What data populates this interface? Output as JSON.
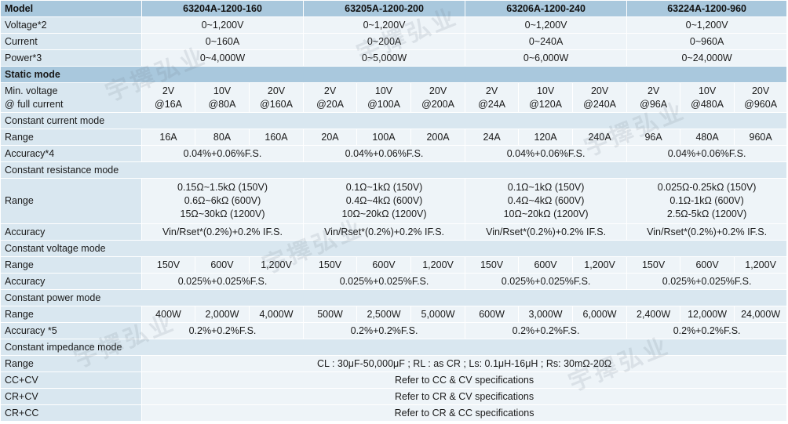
{
  "header": {
    "label": "Model",
    "models": [
      "63204A-1200-160",
      "63205A-1200-200",
      "63206A-1200-240",
      "63224A-1200-960"
    ]
  },
  "rows": {
    "voltage": {
      "label": "Voltage*2",
      "values": [
        "0~1,200V",
        "0~1,200V",
        "0~1,200V",
        "0~1,200V"
      ]
    },
    "current": {
      "label": "Current",
      "values": [
        "0~160A",
        "0~200A",
        "0~240A",
        "0~960A"
      ]
    },
    "power": {
      "label": "Power*3",
      "values": [
        "0~4,000W",
        "0~5,000W",
        "0~6,000W",
        "0~24,000W"
      ]
    }
  },
  "static_mode": {
    "title": "Static mode",
    "min_voltage": {
      "label_line1": "Min. voltage",
      "label_line2": "@ full current",
      "cells": [
        [
          "2V",
          "@16A"
        ],
        [
          "10V",
          "@80A"
        ],
        [
          "20V",
          "@160A"
        ],
        [
          "2V",
          "@20A"
        ],
        [
          "10V",
          "@100A"
        ],
        [
          "20V",
          "@200A"
        ],
        [
          "2V",
          "@24A"
        ],
        [
          "10V",
          "@120A"
        ],
        [
          "20V",
          "@240A"
        ],
        [
          "2V",
          "@96A"
        ],
        [
          "10V",
          "@480A"
        ],
        [
          "20V",
          "@960A"
        ]
      ]
    }
  },
  "cc_mode": {
    "title": "Constant current mode",
    "range_label": "Range",
    "range": [
      "16A",
      "80A",
      "160A",
      "20A",
      "100A",
      "200A",
      "24A",
      "120A",
      "240A",
      "96A",
      "480A",
      "960A"
    ],
    "accuracy_label": "Accuracy*4",
    "accuracy": [
      "0.04%+0.06%F.S.",
      "0.04%+0.06%F.S.",
      "0.04%+0.06%F.S.",
      "0.04%+0.06%F.S."
    ]
  },
  "cr_mode": {
    "title": "Constant resistance mode",
    "range_label": "Range",
    "range": [
      [
        "0.15Ω~1.5kΩ (150V)",
        "0.6Ω~6kΩ (600V)",
        "15Ω~30kΩ (1200V)"
      ],
      [
        "0.1Ω~1kΩ (150V)",
        "0.4Ω~4kΩ (600V)",
        "10Ω~20kΩ (1200V)"
      ],
      [
        "0.1Ω~1kΩ (150V)",
        "0.4Ω~4kΩ (600V)",
        "10Ω~20kΩ (1200V)"
      ],
      [
        "0.025Ω-0.25kΩ (150V)",
        "0.1Ω-1kΩ (600V)",
        "2.5Ω-5kΩ (1200V)"
      ]
    ],
    "accuracy_label": "Accuracy",
    "accuracy": [
      "Vin/Rset*(0.2%)+0.2% IF.S.",
      "Vin/Rset*(0.2%)+0.2% IF.S.",
      "Vin/Rset*(0.2%)+0.2% IF.S.",
      "Vin/Rset*(0.2%)+0.2% IF.S."
    ]
  },
  "cv_mode": {
    "title": "Constant voltage mode",
    "range_label": "Range",
    "range": [
      "150V",
      "600V",
      "1,200V",
      "150V",
      "600V",
      "1,200V",
      "150V",
      "600V",
      "1,200V",
      "150V",
      "600V",
      "1,200V"
    ],
    "accuracy_label": "Accuracy",
    "accuracy": [
      "0.025%+0.025%F.S.",
      "0.025%+0.025%F.S.",
      "0.025%+0.025%F.S.",
      "0.025%+0.025%F.S."
    ]
  },
  "cp_mode": {
    "title": "Constant power mode",
    "range_label": "Range",
    "range": [
      "400W",
      "2,000W",
      "4,000W",
      "500W",
      "2,500W",
      "5,000W",
      "600W",
      "3,000W",
      "6,000W",
      "2,400W",
      "12,000W",
      "24,000W"
    ],
    "accuracy_label": "Accuracy *5",
    "accuracy": [
      "0.2%+0.2%F.S.",
      "0.2%+0.2%F.S.",
      "0.2%+0.2%F.S.",
      "0.2%+0.2%F.S."
    ]
  },
  "ci_mode": {
    "title": "Constant impedance mode",
    "range_label": "Range",
    "range_text": "CL : 30μF-50,000μF ; RL : as CR ; Ls: 0.1μH-16μH ; Rs: 30mΩ-20Ω"
  },
  "combo_modes": [
    {
      "label": "CC+CV",
      "text": "Refer to CC & CV specifications"
    },
    {
      "label": "CR+CV",
      "text": "Refer to CR & CV specifications"
    },
    {
      "label": "CR+CC",
      "text": "Refer to CR & CC specifications"
    }
  ],
  "watermark": "宇擇弘业"
}
